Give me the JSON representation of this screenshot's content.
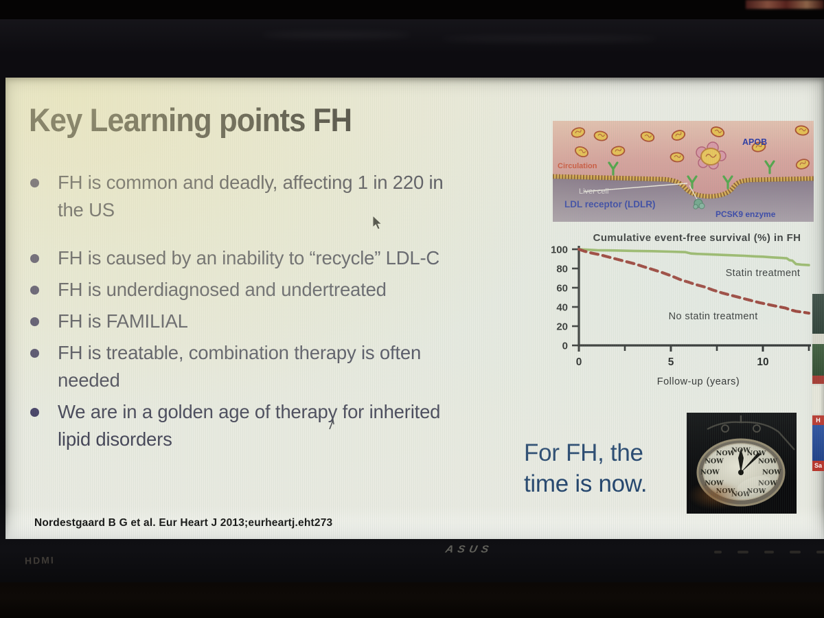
{
  "slide": {
    "title": "Key Learning points FH",
    "bullets": [
      "FH is common and deadly, affecting 1 in 220 in\nthe US",
      "FH is caused by an inability to “recycle” LDL-C",
      "FH is underdiagnosed and undertreated",
      "FH is FAMILIAL",
      "FH is treatable, combination therapy is often\nneeded",
      "We are in a golden age of therapy for inherited\nlipid disorders"
    ],
    "emphasis": "For FH, the\ntime is now.",
    "citation": "Nordestgaard B G et al. Eur Heart J 2013;eurheartj.eht273"
  },
  "diagram": {
    "labels": {
      "circulation": "Circulation",
      "liver_cell": "Liver cell",
      "ldl_receptor": "LDL receptor (LDLR)",
      "apob": "APOB",
      "pcsk9": "PCSK9 enzyme"
    }
  },
  "chart_data": {
    "type": "line",
    "title": "Cumulative event-free survival (%) in FH",
    "xlabel": "Follow-up (years)",
    "ylabel": "",
    "xlim": [
      0,
      12.5
    ],
    "ylim": [
      0,
      100
    ],
    "grid": false,
    "legend_position": "inline-labels",
    "y_ticks": [
      0,
      20,
      40,
      60,
      80,
      100
    ],
    "x_ticks_major": [
      0,
      5,
      10
    ],
    "x_ticks_minor": [
      2.5,
      7.5,
      12.5
    ],
    "series": [
      {
        "name": "Statin treatment",
        "color": "#93b35b",
        "style": "solid",
        "x": [
          0,
          0.5,
          1,
          2,
          3,
          4,
          5,
          5.8,
          6.1,
          6.4,
          7,
          8,
          9,
          9.6,
          10,
          10.5,
          11,
          11.3,
          11.45,
          11.6,
          11.8,
          12.1,
          12.5
        ],
        "y": [
          100,
          99.5,
          99,
          98.7,
          98.3,
          98,
          97.5,
          97,
          95.6,
          95.2,
          94.8,
          94,
          93.2,
          92.6,
          92.3,
          91.6,
          91,
          90.6,
          88.6,
          88.2,
          84.6,
          84,
          83.5
        ],
        "label_x": 10.0,
        "label_y": 72
      },
      {
        "name": "No statin treatment",
        "color": "#93291f",
        "style": "dashed",
        "x": [
          0,
          0.3,
          0.7,
          1.1,
          1.5,
          2,
          2.5,
          3,
          3.5,
          4,
          4.5,
          5,
          5.5,
          6,
          6.3,
          6.8,
          7.3,
          7.8,
          8.3,
          8.8,
          9.3,
          9.8,
          10.3,
          10.8,
          11.2,
          11.5,
          11.8,
          12.2,
          12.5
        ],
        "y": [
          100,
          98,
          96,
          94.5,
          92.5,
          90,
          87.5,
          85,
          82,
          79,
          76,
          72.5,
          68.5,
          65.5,
          63.5,
          61,
          57.5,
          54.5,
          52,
          49.5,
          47,
          44.5,
          42.5,
          40.5,
          39,
          37,
          35.5,
          34.5,
          33.5
        ],
        "label_x": 7.3,
        "label_y": 27
      }
    ]
  },
  "clock_image": {
    "word": "NOW",
    "count": 12
  },
  "monitor": {
    "brand": "ASUS",
    "port_label": "HDMI"
  },
  "background_window": {
    "badge1": "H",
    "badge2": "Sa"
  }
}
